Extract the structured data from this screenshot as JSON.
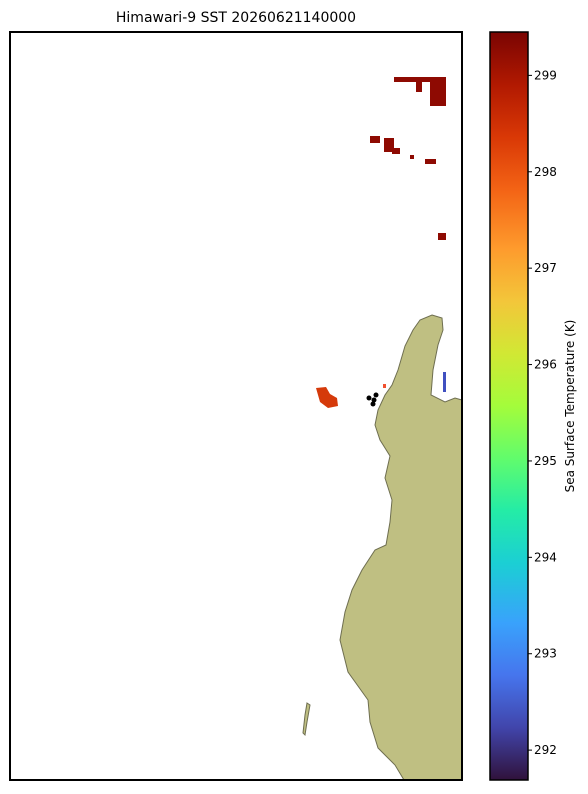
{
  "map": {
    "title": "Himawari-9 SST 20260621140000",
    "colorbar": {
      "label": "Sea Surface Temperature (K)",
      "range": [
        291.69,
        299.45
      ],
      "ticks": [
        292,
        293,
        294,
        295,
        296,
        297,
        298,
        299
      ]
    }
  }
}
